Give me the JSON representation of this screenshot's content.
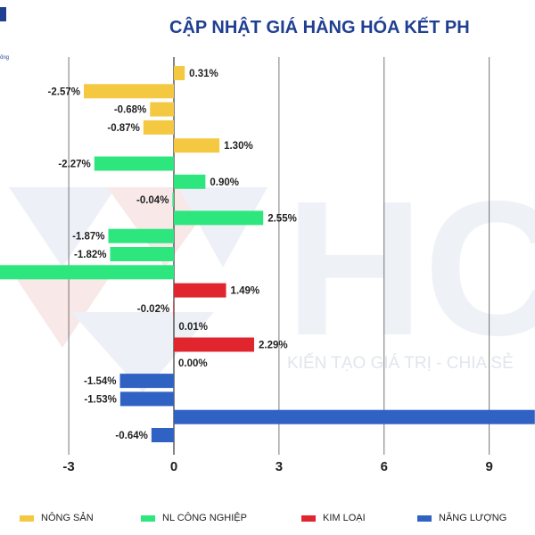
{
  "title": "CẬP NHẬT GIÁ HÀNG HÓA KẾT PH",
  "watermark": {
    "letters": "HC",
    "slogan": "KIẾN TẠO GIÁ TRỊ - CHIA SẺ"
  },
  "logo": {
    "text": "ống"
  },
  "chart_data": {
    "type": "bar",
    "orientation": "horizontal",
    "x_ticks": [
      -3,
      0,
      3,
      6,
      9
    ],
    "xlim": [
      -7.9,
      10.3
    ],
    "grid": true,
    "legend_position": "bottom",
    "series": [
      {
        "name": "NÔNG SẢN",
        "color": "#f5c842"
      },
      {
        "name": "NL CÔNG NGHIỆP",
        "color": "#2ee67e"
      },
      {
        "name": "KIM LOẠI",
        "color": "#e0252e"
      },
      {
        "name": "NĂNG LƯỢNG",
        "color": "#3062c4"
      }
    ],
    "bars": [
      {
        "series": 0,
        "value": 0.31,
        "label": "0.31%"
      },
      {
        "series": 0,
        "value": -2.57,
        "label": "-2.57%"
      },
      {
        "series": 0,
        "value": -0.68,
        "label": "-0.68%"
      },
      {
        "series": 0,
        "value": -0.87,
        "label": "-0.87%"
      },
      {
        "series": 0,
        "value": 1.3,
        "label": "1.30%"
      },
      {
        "series": 1,
        "value": -2.27,
        "label": "-2.27%"
      },
      {
        "series": 1,
        "value": 0.9,
        "label": "0.90%"
      },
      {
        "series": 1,
        "value": -0.04,
        "label": "-0.04%"
      },
      {
        "series": 1,
        "value": 2.55,
        "label": "2.55%"
      },
      {
        "series": 1,
        "value": -1.87,
        "label": "-1.87%"
      },
      {
        "series": 1,
        "value": -1.82,
        "label": "-1.82%"
      },
      {
        "series": 1,
        "value": -5.2,
        "label": "%"
      },
      {
        "series": 2,
        "value": 1.49,
        "label": "1.49%"
      },
      {
        "series": 2,
        "value": -0.02,
        "label": "-0.02%"
      },
      {
        "series": 2,
        "value": 0.01,
        "label": "0.01%"
      },
      {
        "series": 2,
        "value": 2.29,
        "label": "2.29%"
      },
      {
        "series": 2,
        "value": 0.0,
        "label": "0.00%"
      },
      {
        "series": 3,
        "value": -1.54,
        "label": "-1.54%"
      },
      {
        "series": 3,
        "value": -1.53,
        "label": "-1.53%"
      },
      {
        "series": 3,
        "value": 10.3,
        "label": ""
      },
      {
        "series": 3,
        "value": -0.64,
        "label": "-0.64%"
      }
    ]
  }
}
